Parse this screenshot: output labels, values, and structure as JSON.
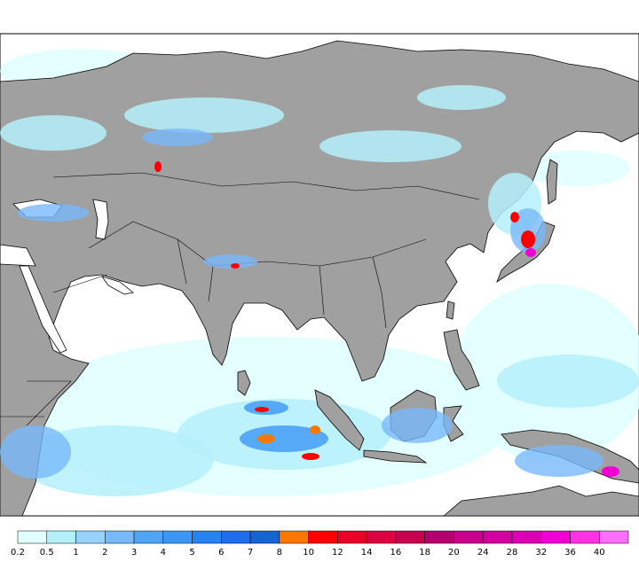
{
  "legend": {
    "labels": [
      "0.2",
      "0.5",
      "1",
      "2",
      "3",
      "4",
      "5",
      "6",
      "7",
      "8",
      "10",
      "12",
      "14",
      "16",
      "18",
      "20",
      "24",
      "28",
      "32",
      "36",
      "40"
    ],
    "colors": [
      "#e1ffff",
      "#b4f0fa",
      "#96d2fa",
      "#78b9fa",
      "#50a5f5",
      "#3c96f5",
      "#2882f0",
      "#1e6eeb",
      "#1464d2",
      "#fa7800",
      "#ff0000",
      "#eb0028",
      "#dc0040",
      "#c80050",
      "#b4006e",
      "#c8008c",
      "#d200a0",
      "#dc00b4",
      "#f000d2",
      "#ff32e6",
      "#ff6eff"
    ]
  }
}
